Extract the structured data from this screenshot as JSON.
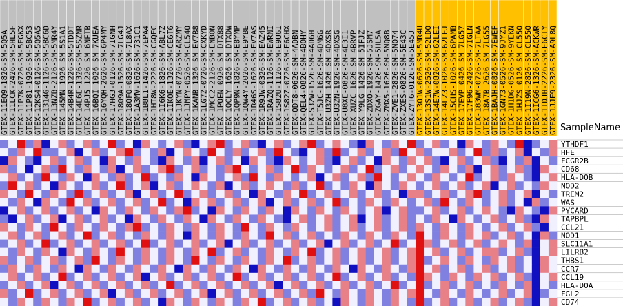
{
  "chart_data": {
    "type": "heatmap",
    "row_header": "SampleName",
    "column_groups": [
      {
        "color": "#c0c0c0",
        "samples": [
          "GTEX-11EQ9-1826-SM-5Q5A",
          "GTEX-11LCK-2426-SM-5HL5F",
          "GTEX-11P7K-0726-SM-5EGKX",
          "GTEX-11P81-1926-SM-5BC53",
          "GTEX-12KS4-0126-SM-5Q5A5",
          "GTEX-1314G-1126-SM-5BC6D",
          "GTEX-13NZB-2126-SM-5MR4Y",
          "GTEX-145MN-1926-SM-5S1A1",
          "GTEX-14B4R-1226-SM-5TDDT",
          "GTEX-14E6E-1326-SM-5SZNR",
          "GTEX-14PJ5-1226-SM-6NFTB",
          "GTEX-16BQI-1026-SM-7KUEA",
          "GTEX-16YQH-2626-SM-6P4MY",
          "GTEX-17HG3-0126-SM-7IGNH",
          "GTEX-1809A-1526-SM-7LG4J",
          "GTEX-18QFQ-0826-SM-7L8AX",
          "GTEX-1A3MV-1626-SM-731C1",
          "GTEX-1B8L1-1426-SM-7EPA4",
          "GTEX-1HT8W-2226-SM-CGQEC",
          "GTEX-1I6K6-1826-SM-ABL7Z",
          "GTEX-1IKOE-1326-SM-CE6T6",
          "GTEX-1JKYN-0726-SM-ARZMY",
          "GTEX-1JMPY-0526-SM-CL54O",
          "GTEX-1KANB-1326-SM-EV7B8",
          "GTEX-1LG7Z-0726-SM-CXKYD",
          "GTEX-1MCC2-2126-SM-ENBON",
          "GTEX-1POEN-0926-SM-DTX88",
          "GTEX-1QCLY-1626-SM-DTXDW",
          "GTEX-1QP9N-1826-SM-E8YMP",
          "GTEX-1QW4Y-2026-SM-E9YBE",
          "GTEX-1R46S-1626-SM-EV7AS",
          "GTEX-1R9JW-0326-SM-EAZ45",
          "GTEX-1RAZQ-1126-SM-EWRNI",
          "GTEX-1S82U-1126-SM-E9U6I",
          "GTEX-1S82Z-0726-SM-E6CHX",
          "GTEX-QDT8-0626-SM-4ADBN",
          "GTEX-QEL4-0826-SM-4BOHY",
          "GTEX-S32W-1526-SM-4AD6H",
          "GTEX-T5JC-1626-SM-4DM6G",
          "GTEX-U3ZH-1426-SM-4DXSR",
          "GTEX-U3ZN-1926-SM-4DXSG",
          "GTEX-U8XE-0826-SM-4E3I1",
          "GTEX-XUZC-1626-SM-4BRVP",
          "GTEX-Y9LG-1426-SM-5IFJZ",
          "GTEX-ZDXO-1926-SM-5JSM7",
          "GTEX-ZGAY-1426-SM-5HL5A",
          "GTEX-ZMX5-1626-SM-5NQ8B",
          "GTEX-ZVE1-2826-SM-5NQ74",
          "GTEX-ZXES-0826-SM-5E43C",
          "GTEX-ZYT6-0126-SM-5E45J"
        ]
      },
      {
        "color": "#ffc000",
        "samples": [
          "GTEX-13O1W-0626-SM-5MR4U",
          "GTEX-13S1W-2526-SM-52LDQ",
          "GTEX-14E7W-0826-SM-62LEI",
          "GTEX-14LZ3-1026-SM-62LEJ",
          "GTEX-15CHS-1026-SM-6PAMB",
          "GTEX-17EVP-0426-SM-7LG57",
          "GTEX-17F96-2426-SM-7IGLN",
          "GTEX-183WM-0726-SM-7LTAA",
          "GTEX-18A7B-2626-SM-7LG55",
          "GTEX-1BAJH-0826-SM-7EWEF",
          "GTEX-1GN73-0526-SM-9JYZ1",
          "GTEX-1H1DG-0526-SM-9YEKN",
          "GTEX-1HJZS-0126-SM-CL55O",
          "GTEX-1I19N-2826-SM-CL55Q",
          "GTEX-1ICG6-1326-SM-ACKWR",
          "GTEX-1IDJH-2226-SM-E6CIY",
          "GTEX-1JJE9-2326-SM-A9L8Q"
        ]
      }
    ],
    "genes": [
      "YTHDF1",
      "HFE",
      "FCGR2B",
      "CD68",
      "HLA-DOB",
      "NOD2",
      "TREM2",
      "WAS",
      "PYCARD",
      "TAPBPL",
      "CCL21",
      "NOD1",
      "SLC11A1",
      "LILRB2",
      "THBS1",
      "CCR7",
      "CCL19",
      "HLA-DOA",
      "FGL2",
      "CD74"
    ],
    "vlim": [
      -2,
      2
    ],
    "colors": [
      "#1010c0",
      "#f0f0ff",
      "#e01010"
    ],
    "values": [
      [
        -1,
        0,
        2,
        -1,
        1,
        -2,
        0,
        1,
        -1,
        0,
        1,
        -1,
        0,
        2,
        -1,
        0,
        -2,
        1,
        0,
        -1,
        0,
        1,
        -1,
        -2,
        0,
        1,
        2,
        -1,
        0,
        1,
        -1,
        -2,
        0,
        1,
        -1,
        0,
        1,
        2,
        -1,
        0,
        1,
        0,
        -1,
        -2,
        1,
        0,
        -1,
        1,
        0,
        2,
        -1,
        0,
        1,
        -1,
        0,
        -2,
        1,
        0,
        -1,
        1,
        0,
        -1,
        2,
        -2,
        -1,
        0,
        1
      ],
      [
        0,
        -1,
        1,
        0,
        2,
        -1,
        -1,
        0,
        1,
        -2,
        0,
        1,
        -1,
        0,
        1,
        2,
        -1,
        0,
        -1,
        1,
        -2,
        0,
        1,
        0,
        -1,
        2,
        0,
        -1,
        1,
        -1,
        0,
        1,
        -1,
        2,
        0,
        -1,
        -2,
        0,
        1,
        -1,
        2,
        -1,
        0,
        1,
        -1,
        0,
        1,
        -1,
        2,
        0,
        1,
        -1,
        0,
        0,
        1,
        -1,
        0,
        2,
        -1,
        1,
        -1,
        0,
        1,
        -2,
        0,
        -1,
        1
      ],
      [
        -2,
        1,
        0,
        -1,
        -2,
        0,
        1,
        -1,
        0,
        1,
        -1,
        0,
        -2,
        1,
        0,
        -1,
        1,
        0,
        -1,
        -2,
        1,
        0,
        -1,
        1,
        -2,
        0,
        1,
        -1,
        0,
        -2,
        1,
        0,
        -1,
        -2,
        1,
        0,
        -1,
        0,
        1,
        -1,
        -2,
        0,
        1,
        -1,
        0,
        -2,
        1,
        0,
        -1,
        1,
        0,
        1,
        -1,
        -2,
        0,
        1,
        -1,
        0,
        1,
        -1,
        -2,
        0,
        -1,
        1,
        -2,
        0,
        -1
      ],
      [
        1,
        -1,
        0,
        -2,
        0,
        1,
        -1,
        2,
        0,
        -1,
        1,
        0,
        -1,
        1,
        -2,
        0,
        1,
        -1,
        0,
        1,
        2,
        -1,
        0,
        1,
        -1,
        0,
        -1,
        1,
        2,
        0,
        -1,
        0,
        1,
        -1,
        0,
        2,
        -1,
        1,
        0,
        -1,
        0,
        1,
        -1,
        0,
        2,
        -1,
        0,
        1,
        -1,
        0,
        1,
        0,
        -1,
        1,
        0,
        -1,
        1,
        -2,
        0,
        1,
        -1,
        0,
        1,
        -1,
        -2,
        1,
        0
      ],
      [
        0,
        1,
        -1,
        0,
        -1,
        2,
        0,
        -1,
        1,
        0,
        -2,
        1,
        0,
        -1,
        1,
        -1,
        0,
        2,
        -1,
        0,
        -1,
        1,
        0,
        -2,
        1,
        0,
        -1,
        0,
        1,
        -1,
        2,
        0,
        -1,
        1,
        0,
        -1,
        0,
        1,
        -2,
        0,
        1,
        -1,
        0,
        1,
        -1,
        2,
        0,
        -1,
        0,
        1,
        0,
        -1,
        1,
        0,
        -1,
        0,
        2,
        -1,
        0,
        1,
        -1,
        1,
        0,
        -1,
        -2,
        0,
        1
      ],
      [
        -1,
        2,
        0,
        1,
        -1,
        0,
        -2,
        1,
        0,
        -1,
        0,
        1,
        -1,
        0,
        2,
        -1,
        0,
        1,
        -2,
        0,
        1,
        -1,
        0,
        1,
        0,
        -1,
        1,
        -2,
        0,
        1,
        -1,
        0,
        1,
        0,
        -1,
        1,
        -1,
        0,
        2,
        -1,
        0,
        -1,
        1,
        0,
        -2,
        1,
        0,
        -1,
        1,
        0,
        -1,
        0,
        1,
        -1,
        0,
        1,
        -1,
        0,
        1,
        -2,
        0,
        1,
        -1,
        0,
        -1,
        1,
        0
      ],
      [
        1,
        0,
        -1,
        2,
        0,
        -1,
        1,
        0,
        -1,
        2,
        -1,
        0,
        1,
        -1,
        0,
        1,
        -2,
        0,
        1,
        -1,
        0,
        2,
        -1,
        0,
        1,
        -1,
        0,
        1,
        -1,
        0,
        -2,
        1,
        0,
        -1,
        1,
        0,
        2,
        -1,
        0,
        1,
        -1,
        0,
        1,
        -1,
        0,
        1,
        -1,
        0,
        -2,
        1,
        1,
        -1,
        0,
        1,
        -1,
        0,
        1,
        2,
        -1,
        0,
        1,
        -1,
        0,
        1,
        -2,
        0,
        -1
      ],
      [
        0,
        -1,
        1,
        0,
        -2,
        1,
        0,
        -1,
        2,
        0,
        1,
        -1,
        0,
        1,
        -1,
        0,
        1,
        -1,
        0,
        2,
        -1,
        0,
        -2,
        1,
        0,
        1,
        -1,
        0,
        1,
        -1,
        0,
        1,
        -2,
        0,
        1,
        -1,
        0,
        1,
        -1,
        0,
        2,
        -1,
        0,
        -1,
        1,
        0,
        -1,
        1,
        0,
        -1,
        0,
        1,
        -1,
        2,
        0,
        -1,
        1,
        0,
        -1,
        0,
        1,
        -1,
        0,
        -2,
        1,
        -1,
        0
      ],
      [
        -2,
        0,
        1,
        -1,
        0,
        1,
        -1,
        0,
        1,
        -1,
        0,
        -2,
        1,
        0,
        -1,
        1,
        0,
        -1,
        1,
        0,
        -1,
        1,
        2,
        -1,
        0,
        -2,
        1,
        0,
        -1,
        1,
        0,
        -1,
        1,
        0,
        -2,
        1,
        0,
        -1,
        1,
        0,
        -1,
        1,
        0,
        -1,
        0,
        1,
        -2,
        0,
        1,
        -1,
        -1,
        0,
        1,
        -1,
        0,
        1,
        -1,
        0,
        1,
        0,
        -1,
        -2,
        1,
        0,
        -1,
        -2,
        1
      ],
      [
        -1,
        -2,
        0,
        1,
        -1,
        0,
        1,
        -2,
        0,
        1,
        -1,
        0,
        1,
        -1,
        0,
        -2,
        1,
        0,
        -1,
        1,
        0,
        -1,
        1,
        0,
        -2,
        1,
        0,
        -1,
        1,
        0,
        -1,
        1,
        0,
        -1,
        -2,
        0,
        1,
        -1,
        0,
        1,
        -1,
        0,
        1,
        -2,
        0,
        1,
        -1,
        0,
        1,
        -1,
        0,
        -1,
        1,
        0,
        -2,
        1,
        0,
        -1,
        0,
        1,
        -1,
        0,
        1,
        -1,
        -2,
        1,
        0
      ],
      [
        1,
        0,
        -1,
        1,
        0,
        -1,
        2,
        0,
        -1,
        1,
        0,
        -1,
        1,
        0,
        -1,
        1,
        2,
        -1,
        0,
        -1,
        1,
        0,
        -1,
        1,
        0,
        -1,
        1,
        0,
        -1,
        2,
        0,
        -1,
        1,
        0,
        -1,
        1,
        0,
        -1,
        0,
        1,
        -1,
        0,
        1,
        -1,
        0,
        1,
        -1,
        0,
        1,
        -1,
        1,
        0,
        -1,
        1,
        0,
        -1,
        1,
        0,
        -1,
        0,
        1,
        -1,
        0,
        1,
        -1,
        -2,
        0
      ],
      [
        0,
        1,
        -1,
        0,
        1,
        -1,
        0,
        1,
        -1,
        0,
        2,
        -1,
        0,
        1,
        -1,
        0,
        -1,
        1,
        0,
        -1,
        1,
        0,
        -2,
        1,
        0,
        -1,
        1,
        0,
        -1,
        1,
        0,
        -1,
        2,
        0,
        1,
        -1,
        0,
        1,
        -1,
        0,
        -1,
        1,
        0,
        -1,
        1,
        0,
        -1,
        1,
        0,
        -1,
        2,
        0,
        -1,
        1,
        0,
        -1,
        1,
        0,
        1,
        -1,
        0,
        1,
        -1,
        0,
        -2,
        1,
        -1
      ],
      [
        -1,
        0,
        1,
        -1,
        0,
        2,
        -1,
        0,
        1,
        -1,
        0,
        1,
        -1,
        0,
        1,
        -1,
        0,
        2,
        -1,
        0,
        1,
        -1,
        0,
        1,
        -1,
        0,
        1,
        -2,
        0,
        1,
        -1,
        0,
        1,
        -1,
        0,
        1,
        -1,
        0,
        1,
        -2,
        0,
        1,
        -1,
        0,
        1,
        -1,
        0,
        2,
        -1,
        0,
        2,
        1,
        -1,
        0,
        1,
        -1,
        0,
        1,
        -1,
        0,
        1,
        0,
        -1,
        1,
        -2,
        0,
        1
      ],
      [
        0,
        -1,
        1,
        0,
        -1,
        1,
        0,
        -2,
        1,
        0,
        -1,
        1,
        0,
        -1,
        2,
        0,
        -1,
        1,
        0,
        -1,
        1,
        0,
        -1,
        1,
        0,
        2,
        -1,
        0,
        1,
        -1,
        0,
        -1,
        1,
        0,
        -1,
        1,
        0,
        2,
        -1,
        0,
        1,
        -1,
        0,
        1,
        -1,
        0,
        1,
        -1,
        0,
        1,
        2,
        0,
        1,
        -1,
        0,
        1,
        -1,
        0,
        1,
        1,
        -1,
        0,
        1,
        -1,
        -2,
        0,
        1
      ],
      [
        1,
        -1,
        0,
        1,
        -1,
        0,
        1,
        -1,
        0,
        1,
        -1,
        2,
        0,
        -1,
        1,
        0,
        -1,
        1,
        0,
        -1,
        1,
        0,
        -1,
        2,
        0,
        -1,
        1,
        0,
        -1,
        1,
        0,
        -1,
        1,
        0,
        2,
        -1,
        0,
        1,
        -1,
        0,
        1,
        -1,
        0,
        1,
        -1,
        0,
        1,
        -1,
        0,
        1,
        2,
        -1,
        0,
        1,
        0,
        -1,
        1,
        0,
        -1,
        1,
        0,
        1,
        -1,
        0,
        -2,
        1,
        0
      ],
      [
        -1,
        1,
        0,
        -1,
        1,
        0,
        -1,
        1,
        0,
        -2,
        1,
        0,
        -1,
        1,
        0,
        -1,
        1,
        0,
        -1,
        1,
        0,
        -2,
        1,
        0,
        -1,
        1,
        0,
        -1,
        1,
        0,
        -2,
        1,
        0,
        -1,
        1,
        0,
        -1,
        1,
        0,
        -1,
        1,
        0,
        -2,
        1,
        0,
        -1,
        1,
        0,
        -1,
        1,
        2,
        0,
        1,
        -1,
        0,
        1,
        -1,
        0,
        1,
        -1,
        0,
        1,
        -1,
        0,
        -2,
        1,
        0
      ],
      [
        0,
        1,
        -1,
        0,
        1,
        -1,
        0,
        2,
        -1,
        0,
        1,
        -1,
        0,
        1,
        -1,
        0,
        1,
        -2,
        0,
        1,
        -1,
        0,
        1,
        -1,
        0,
        1,
        -1,
        0,
        2,
        -1,
        0,
        1,
        -1,
        0,
        1,
        -1,
        0,
        1,
        -1,
        0,
        2,
        -1,
        0,
        1,
        -1,
        0,
        1,
        -1,
        0,
        -1,
        2,
        1,
        0,
        -1,
        1,
        0,
        -1,
        1,
        0,
        1,
        -1,
        0,
        1,
        -1,
        -2,
        0,
        1
      ],
      [
        -1,
        0,
        1,
        -1,
        0,
        1,
        -2,
        0,
        1,
        -1,
        0,
        1,
        -1,
        0,
        1,
        -1,
        0,
        1,
        -1,
        0,
        2,
        -1,
        0,
        1,
        -1,
        0,
        1,
        -1,
        0,
        1,
        -1,
        0,
        1,
        -2,
        0,
        1,
        -1,
        0,
        1,
        -1,
        0,
        1,
        -1,
        0,
        1,
        -1,
        0,
        2,
        -1,
        0,
        2,
        -1,
        0,
        1,
        -1,
        0,
        1,
        -1,
        0,
        -1,
        1,
        0,
        -1,
        1,
        -2,
        0,
        -1
      ],
      [
        1,
        -1,
        0,
        2,
        -1,
        0,
        1,
        -1,
        0,
        1,
        -1,
        0,
        1,
        -2,
        0,
        1,
        -1,
        0,
        1,
        -1,
        0,
        1,
        -1,
        0,
        1,
        -2,
        0,
        1,
        -1,
        0,
        1,
        -1,
        0,
        1,
        -1,
        0,
        1,
        -1,
        2,
        0,
        -1,
        1,
        0,
        -1,
        1,
        0,
        -1,
        1,
        0,
        1,
        2,
        0,
        -1,
        1,
        0,
        -1,
        1,
        0,
        -1,
        0,
        1,
        -1,
        0,
        1,
        -2,
        -1,
        0
      ],
      [
        0,
        -1,
        1,
        0,
        -1,
        1,
        0,
        -1,
        1,
        0,
        2,
        -1,
        0,
        1,
        -1,
        0,
        1,
        -1,
        0,
        -2,
        1,
        0,
        -1,
        1,
        0,
        -1,
        1,
        0,
        -1,
        1,
        0,
        2,
        -1,
        0,
        1,
        -1,
        0,
        1,
        -1,
        0,
        -2,
        1,
        0,
        -1,
        1,
        0,
        -1,
        1,
        0,
        -1,
        2,
        -1,
        0,
        1,
        -1,
        0,
        1,
        -1,
        0,
        1,
        -1,
        0,
        1,
        -1,
        -2,
        0,
        1
      ]
    ]
  }
}
